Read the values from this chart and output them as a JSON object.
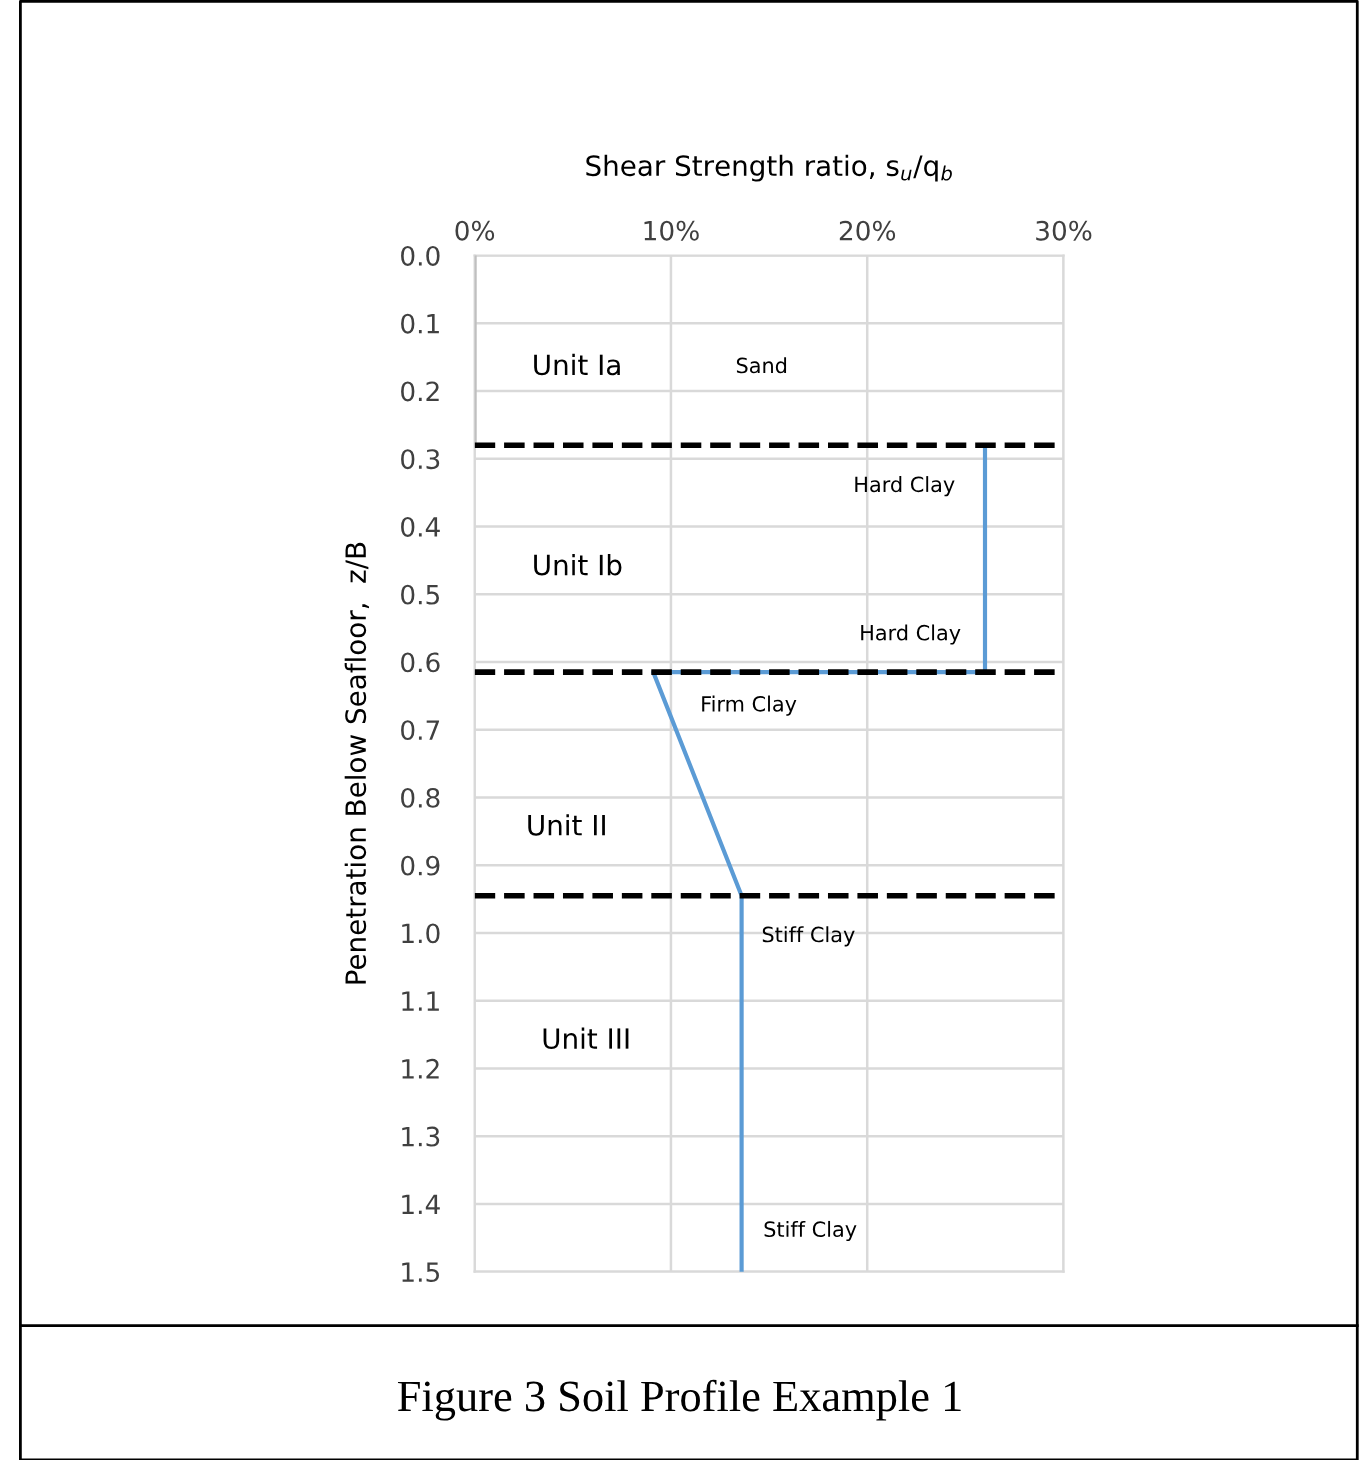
{
  "chart_data": {
    "type": "line",
    "title": "Figure 3 Soil Profile Example 1",
    "xlabel": "Shear Strength ratio, s$_{u}$/q$_{b}$",
    "ylabel": "Penetration Below Seafloor,  z/B",
    "series": [
      {
        "color": "#bfbfbf",
        "x": [
          0,
          0
        ],
        "values": [
          0,
          0.28
        ]
      },
      {
        "color": "#5b9bd5",
        "x": [
          26,
          26,
          9.1,
          13.6,
          13.6
        ],
        "values": [
          0.28,
          0.615,
          0.615,
          0.945,
          1.5
        ]
      }
    ],
    "xlim": [
      0,
      30
    ],
    "xticks": [
      {
        "value": 0,
        "label": "0%"
      },
      {
        "value": 10,
        "label": "10%"
      },
      {
        "value": 20,
        "label": "20%"
      },
      {
        "value": 30,
        "label": "30%"
      }
    ],
    "ylim": [
      1.5,
      0
    ],
    "yticks": [
      {
        "value": 0,
        "label": "0.0"
      },
      {
        "value": 0.1,
        "label": "0.1"
      },
      {
        "value": 0.2,
        "label": "0.2"
      },
      {
        "value": 0.3,
        "label": "0.3"
      },
      {
        "value": 0.4,
        "label": "0.4"
      },
      {
        "value": 0.5,
        "label": "0.5"
      },
      {
        "value": 0.6,
        "label": "0.6"
      },
      {
        "value": 0.7,
        "label": "0.7"
      },
      {
        "value": 0.8,
        "label": "0.8"
      },
      {
        "value": 0.9,
        "label": "0.9"
      },
      {
        "value": 1.0,
        "label": "1.0"
      },
      {
        "value": 1.1,
        "label": "1.1"
      },
      {
        "value": 1.2,
        "label": "1.2"
      },
      {
        "value": 1.3,
        "label": "1.3"
      },
      {
        "value": 1.4,
        "label": "1.4"
      },
      {
        "value": 1.5,
        "label": "1.5"
      }
    ],
    "ref_lines": [
      {
        "axis": "y",
        "value": 0.28,
        "color": "#000000",
        "line_style": "dashed"
      },
      {
        "axis": "y",
        "value": 0.615,
        "color": "#000000",
        "line_style": "dashed"
      },
      {
        "axis": "y",
        "value": 0.945,
        "color": "#000000",
        "line_style": "dashed"
      }
    ],
    "annotations": [
      "Unit Ia",
      "Sand",
      "Hard Clay",
      "Unit Ib",
      "Hard Clay",
      "Firm Clay",
      "Unit II",
      "Stiff Clay",
      "Unit III",
      "Stiff Clay"
    ],
    "grid": true,
    "marker": "none",
    "line_style": "solid"
  }
}
